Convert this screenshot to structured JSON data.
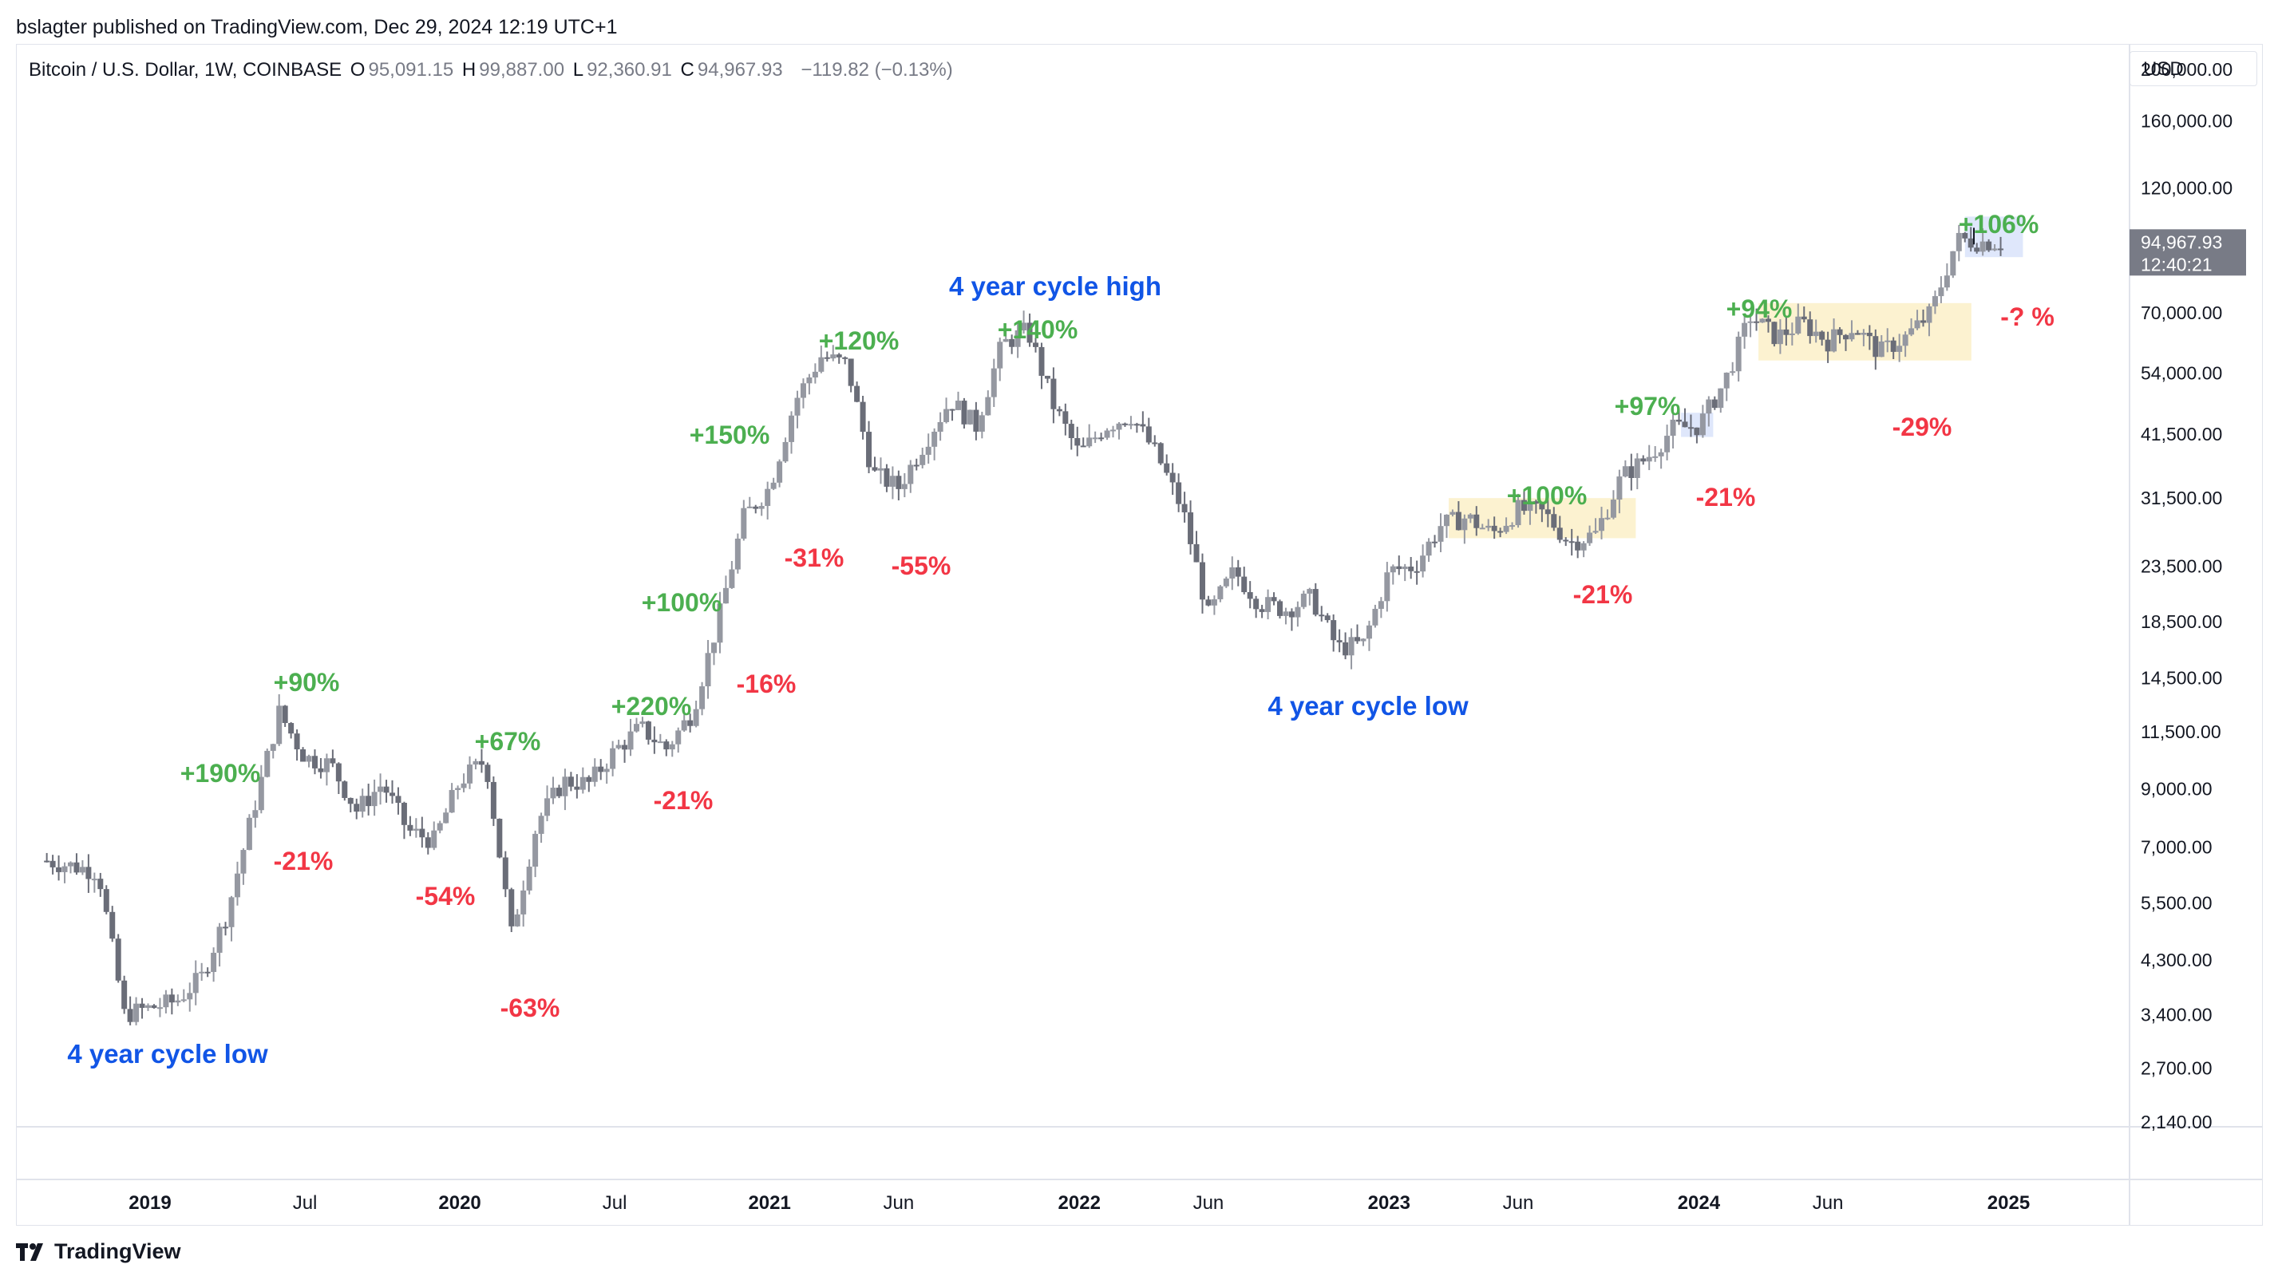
{
  "publish_line": "bslagter published on TradingView.com, Dec 29, 2024 12:19 UTC+1",
  "header": {
    "symbol": "Bitcoin / U.S. Dollar, 1W, COINBASE",
    "o_label": "O",
    "o_value": "95,091.15",
    "h_label": "H",
    "h_value": "99,887.00",
    "l_label": "L",
    "l_value": "92,360.91",
    "c_label": "C",
    "c_value": "94,967.93",
    "change": "−119.82 (−0.13%)"
  },
  "currency": "USD",
  "price_tag": {
    "price": "94,967.93",
    "countdown": "12:40:21"
  },
  "brand": "TradingView",
  "colors": {
    "up": "#4caf50",
    "down": "#f23645",
    "cycle": "#1155e6",
    "candle": "#9598a1",
    "candle_dark": "#6a6d78",
    "box_yellow": "#fbf0c8",
    "box_blue": "#d9e3fa",
    "tag_bg": "#787b86"
  },
  "chart_data": {
    "type": "candlestick",
    "y_scale": "log",
    "ylim": [
      2000,
      230000
    ],
    "x_range": [
      "2018-09",
      "2025-06"
    ],
    "y_tick_labels": [
      "200,000.00",
      "160,000.00",
      "120,000.00",
      "70,000.00",
      "54,000.00",
      "41,500.00",
      "31,500.00",
      "23,500.00",
      "18,500.00",
      "14,500.00",
      "11,500.00",
      "9,000.00",
      "7,000.00",
      "5,500.00",
      "4,300.00",
      "3,400.00",
      "2,700.00",
      "2,140.00"
    ],
    "x_tick_labels": [
      {
        "label": "2019",
        "bold": true
      },
      {
        "label": "Jul",
        "bold": false
      },
      {
        "label": "2020",
        "bold": true
      },
      {
        "label": "Jul",
        "bold": false
      },
      {
        "label": "2021",
        "bold": true
      },
      {
        "label": "Jun",
        "bold": false
      },
      {
        "label": "2022",
        "bold": true
      },
      {
        "label": "Jun",
        "bold": false
      },
      {
        "label": "2023",
        "bold": true
      },
      {
        "label": "Jun",
        "bold": false
      },
      {
        "label": "2024",
        "bold": true
      },
      {
        "label": "Jun",
        "bold": false
      },
      {
        "label": "2025",
        "bold": true
      }
    ],
    "price_path": [
      [
        "2018-09",
        6600
      ],
      [
        "2018-11",
        6300
      ],
      [
        "2018-12",
        3400
      ],
      [
        "2019-02",
        3600
      ],
      [
        "2019-03",
        4000
      ],
      [
        "2019-04",
        5300
      ],
      [
        "2019-05",
        8200
      ],
      [
        "2019-06",
        12500
      ],
      [
        "2019-07",
        10300
      ],
      [
        "2019-08",
        10000
      ],
      [
        "2019-09",
        8200
      ],
      [
        "2019-10",
        9200
      ],
      [
        "2019-11",
        7500
      ],
      [
        "2019-12",
        7200
      ],
      [
        "2020-01",
        9300
      ],
      [
        "2020-02",
        10200
      ],
      [
        "2020-03",
        4800
      ],
      [
        "2020-04",
        7800
      ],
      [
        "2020-05",
        9300
      ],
      [
        "2020-06",
        9200
      ],
      [
        "2020-07",
        10600
      ],
      [
        "2020-08",
        11700
      ],
      [
        "2020-09",
        10700
      ],
      [
        "2020-10",
        12500
      ],
      [
        "2020-11",
        18500
      ],
      [
        "2020-12",
        29000
      ],
      [
        "2021-01",
        33000
      ],
      [
        "2021-02",
        48000
      ],
      [
        "2021-03",
        58000
      ],
      [
        "2021-04",
        56000
      ],
      [
        "2021-05",
        35000
      ],
      [
        "2021-06",
        33000
      ],
      [
        "2021-07",
        40000
      ],
      [
        "2021-08",
        48000
      ],
      [
        "2021-09",
        43000
      ],
      [
        "2021-10",
        61000
      ],
      [
        "2021-11",
        65000
      ],
      [
        "2021-12",
        47000
      ],
      [
        "2022-01",
        38000
      ],
      [
        "2022-02",
        43000
      ],
      [
        "2022-03",
        45000
      ],
      [
        "2022-04",
        38000
      ],
      [
        "2022-05",
        30000
      ],
      [
        "2022-06",
        19000
      ],
      [
        "2022-07",
        23000
      ],
      [
        "2022-08",
        20000
      ],
      [
        "2022-09",
        19500
      ],
      [
        "2022-10",
        20500
      ],
      [
        "2022-11",
        16500
      ],
      [
        "2022-12",
        16800
      ],
      [
        "2023-01",
        23000
      ],
      [
        "2023-02",
        23500
      ],
      [
        "2023-03",
        28000
      ],
      [
        "2023-04",
        29000
      ],
      [
        "2023-05",
        27000
      ],
      [
        "2023-06",
        30000
      ],
      [
        "2023-07",
        29500
      ],
      [
        "2023-08",
        26000
      ],
      [
        "2023-09",
        27000
      ],
      [
        "2023-10",
        34500
      ],
      [
        "2023-11",
        37500
      ],
      [
        "2023-12",
        42500
      ],
      [
        "2024-01",
        43000
      ],
      [
        "2024-02",
        52000
      ],
      [
        "2024-03",
        69000
      ],
      [
        "2024-04",
        63000
      ],
      [
        "2024-05",
        67000
      ],
      [
        "2024-06",
        62000
      ],
      [
        "2024-07",
        66000
      ],
      [
        "2024-08",
        59000
      ],
      [
        "2024-09",
        63000
      ],
      [
        "2024-10",
        70000
      ],
      [
        "2024-11",
        96000
      ],
      [
        "2024-12",
        95000
      ]
    ],
    "annotations": [
      {
        "text": "4 year cycle low",
        "kind": "cycle"
      },
      {
        "text": "4 year cycle high",
        "kind": "cycle"
      },
      {
        "text": "4 year cycle low",
        "kind": "cycle"
      },
      {
        "text": "+190%",
        "kind": "up"
      },
      {
        "text": "+90%",
        "kind": "up"
      },
      {
        "text": "+67%",
        "kind": "up"
      },
      {
        "text": "+220%",
        "kind": "up"
      },
      {
        "text": "+100%",
        "kind": "up"
      },
      {
        "text": "+150%",
        "kind": "up"
      },
      {
        "text": "+120%",
        "kind": "up"
      },
      {
        "text": "+140%",
        "kind": "up"
      },
      {
        "text": "+100%",
        "kind": "up"
      },
      {
        "text": "+97%",
        "kind": "up"
      },
      {
        "text": "+94%",
        "kind": "up"
      },
      {
        "text": "+106%",
        "kind": "up"
      },
      {
        "text": "-21%",
        "kind": "down"
      },
      {
        "text": "-54%",
        "kind": "down"
      },
      {
        "text": "-63%",
        "kind": "down"
      },
      {
        "text": "-21%",
        "kind": "down"
      },
      {
        "text": "-16%",
        "kind": "down"
      },
      {
        "text": "-31%",
        "kind": "down"
      },
      {
        "text": "-55%",
        "kind": "down"
      },
      {
        "text": "-21%",
        "kind": "down"
      },
      {
        "text": "-21%",
        "kind": "down"
      },
      {
        "text": "-29%",
        "kind": "down"
      },
      {
        "text": "-? %",
        "kind": "down"
      }
    ]
  }
}
